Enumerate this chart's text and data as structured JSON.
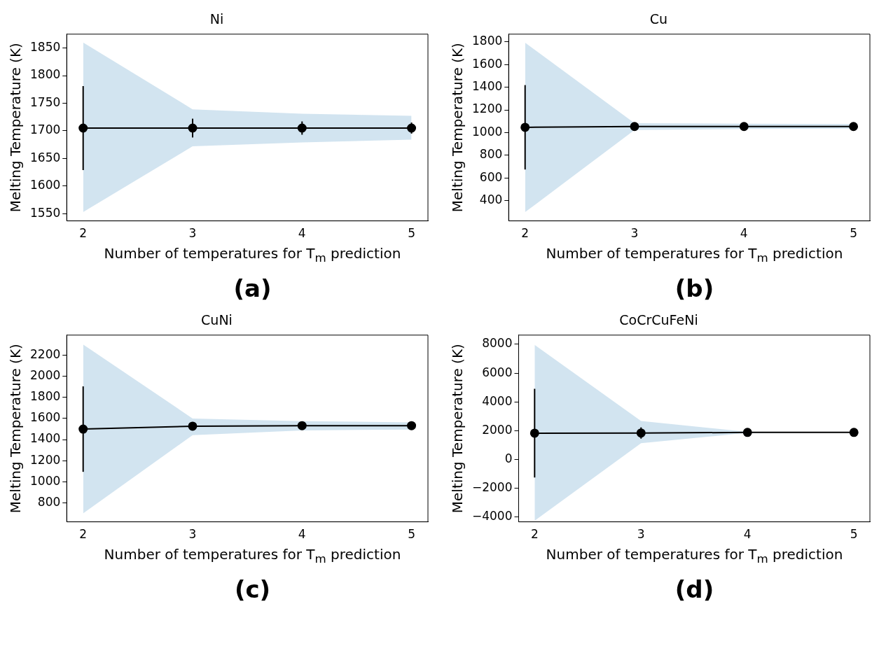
{
  "chart_data": [
    {
      "type": "line",
      "title": "Ni",
      "xlabel": "Number of temperatures for T$_{m}$ prediction",
      "ylabel": "Melting Temperature (K)",
      "x": [
        2,
        3,
        4,
        5
      ],
      "xlim": [
        1.85,
        5.15
      ],
      "xticks": [
        2,
        3,
        4,
        5
      ],
      "ylim": [
        1537,
        1875
      ],
      "yticks": [
        1550,
        1600,
        1650,
        1700,
        1750,
        1800,
        1850
      ],
      "grid": false,
      "marker": "circle",
      "legend": false,
      "annotations": [
        "(a)"
      ],
      "series": [
        {
          "color": "#000000",
          "values": [
            1705,
            1705,
            1705,
            1705
          ],
          "errors": [
            76,
            17,
            12,
            10
          ],
          "lower": [
            1553,
            1672,
            1679,
            1684
          ],
          "upper": [
            1860,
            1739,
            1731,
            1727
          ]
        }
      ]
    },
    {
      "type": "line",
      "title": "Cu",
      "xlabel": "Number of temperatures for T$_{m}$ prediction",
      "ylabel": "Melting Temperature (K)",
      "x": [
        2,
        3,
        4,
        5
      ],
      "xlim": [
        1.85,
        5.15
      ],
      "xticks": [
        2,
        3,
        4,
        5
      ],
      "ylim": [
        222,
        1868
      ],
      "yticks": [
        400,
        600,
        800,
        1000,
        1200,
        1400,
        1600,
        1800
      ],
      "grid": false,
      "marker": "circle",
      "legend": false,
      "annotations": [
        "(b)"
      ],
      "series": [
        {
          "color": "#000000",
          "values": [
            1047,
            1054,
            1054,
            1054
          ],
          "errors": [
            372,
            null,
            null,
            null
          ],
          "lower": [
            299,
            1023,
            1032,
            1035
          ],
          "upper": [
            1793,
            1084,
            1078,
            1075
          ]
        }
      ]
    },
    {
      "type": "line",
      "title": "CuNi",
      "xlabel": "Number of temperatures for T$_{m}$ prediction",
      "ylabel": "Melting Temperature (K)",
      "x": [
        2,
        3,
        4,
        5
      ],
      "xlim": [
        1.85,
        5.15
      ],
      "xticks": [
        2,
        3,
        4,
        5
      ],
      "ylim": [
        620,
        2390
      ],
      "yticks": [
        800,
        1000,
        1200,
        1400,
        1600,
        1800,
        2000,
        2200
      ],
      "grid": false,
      "marker": "circle",
      "legend": false,
      "annotations": [
        "(c)"
      ],
      "series": [
        {
          "color": "#000000",
          "values": [
            1499,
            1527,
            1532,
            1532
          ],
          "errors": [
            405,
            25,
            null,
            null
          ],
          "lower": [
            700,
            1442,
            1487,
            1495
          ],
          "upper": [
            2301,
            1600,
            1575,
            1563
          ]
        }
      ]
    },
    {
      "type": "line",
      "title": "CoCrCuFeNi",
      "xlabel": "Number of temperatures for T$_{m}$ prediction",
      "ylabel": "Melting Temperature (K)",
      "x": [
        2,
        3,
        4,
        5
      ],
      "xlim": [
        1.85,
        5.15
      ],
      "xticks": [
        2,
        3,
        4,
        5
      ],
      "ylim": [
        -4330,
        8640
      ],
      "yticks": [
        -4000,
        -2000,
        0,
        2000,
        4000,
        6000,
        8000
      ],
      "grid": false,
      "marker": "circle",
      "legend": false,
      "annotations": [
        "(d)"
      ],
      "series": [
        {
          "color": "#000000",
          "values": [
            1830,
            1840,
            1880,
            1880
          ],
          "errors": [
            3080,
            390,
            null,
            null
          ],
          "lower": [
            -4250,
            1130,
            1850,
            1870
          ],
          "upper": [
            7960,
            2680,
            1920,
            1890
          ]
        }
      ]
    }
  ]
}
